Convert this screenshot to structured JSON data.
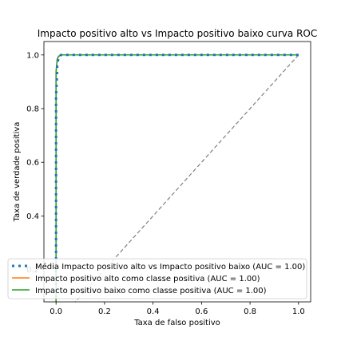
{
  "chart_data": {
    "type": "line",
    "title": "Impacto positivo alto vs Impacto positivo baixo curva ROC",
    "xlabel": "Taxa de falso positivo",
    "ylabel": "Taxa de verdade positiva",
    "xlim": [
      -0.05,
      1.05
    ],
    "ylim": [
      0.08,
      1.05
    ],
    "xticks": [
      0.0,
      0.2,
      0.4,
      0.6,
      0.8,
      1.0
    ],
    "xtick_labels": [
      "0.0",
      "0.2",
      "0.4",
      "0.6",
      "0.8",
      "1.0"
    ],
    "yticks": [
      0.2,
      0.4,
      0.6,
      0.8,
      1.0
    ],
    "ytick_labels": [
      "0.2",
      "0.4",
      "0.6",
      "0.8",
      "1.0"
    ],
    "grid": false,
    "legend_position": "lower-left",
    "series": [
      {
        "name": "Média Impacto positivo alto vs Impacto positivo baixo (AUC = 1.00)",
        "color": "#1f77b4",
        "style": "dotted",
        "x": [
          0.0,
          0.0,
          0.003,
          0.005,
          0.01,
          0.02,
          0.05,
          0.1,
          0.2,
          0.4,
          0.6,
          0.8,
          1.0
        ],
        "y": [
          0.0,
          0.85,
          0.9,
          0.96,
          0.99,
          1.0,
          1.0,
          1.0,
          1.0,
          1.0,
          1.0,
          1.0,
          1.0
        ]
      },
      {
        "name": "Impacto positivo alto como classe positiva (AUC = 1.00)",
        "color": "#ff7f0e",
        "style": "solid",
        "x": [
          0.0,
          0.0,
          0.005,
          0.01,
          0.02,
          0.05,
          1.0
        ],
        "y": [
          0.0,
          0.93,
          0.985,
          0.993,
          1.0,
          1.0,
          1.0
        ]
      },
      {
        "name": "Impacto positivo baixo como classe positiva (AUC = 1.00)",
        "color": "#2ca02c",
        "style": "solid",
        "x": [
          0.0,
          0.0,
          0.005,
          0.01,
          0.02,
          0.05,
          1.0
        ],
        "y": [
          0.0,
          0.94,
          0.985,
          0.995,
          1.0,
          1.0,
          1.0
        ]
      },
      {
        "name": "",
        "color": "#808080",
        "style": "dashed",
        "x": [
          0.0,
          1.0
        ],
        "y": [
          0.0,
          1.0
        ]
      }
    ]
  }
}
